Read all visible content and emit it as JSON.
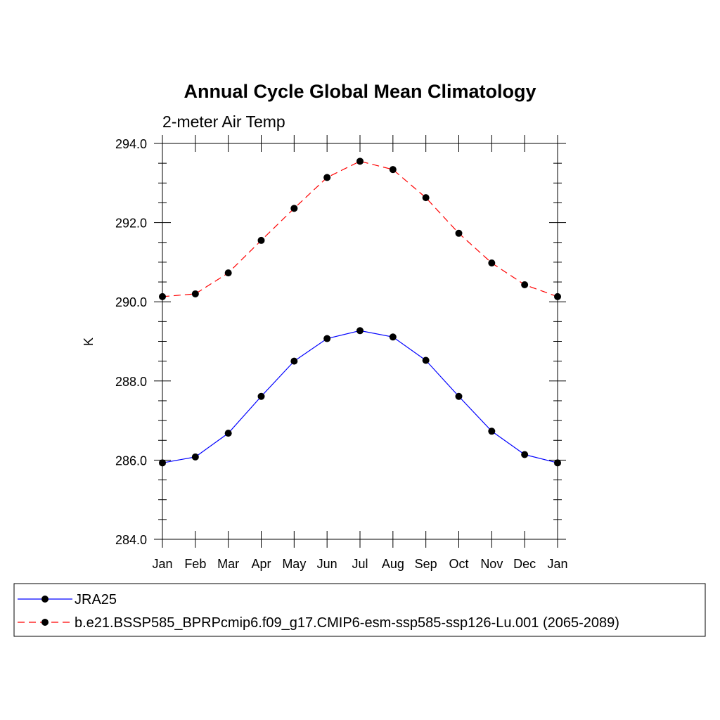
{
  "chart_data": {
    "type": "line",
    "title": "Annual Cycle Global Mean Climatology",
    "subtitle": "2-meter Air Temp",
    "xlabel": "",
    "ylabel": "K",
    "categories": [
      "Jan",
      "Feb",
      "Mar",
      "Apr",
      "May",
      "Jun",
      "Jul",
      "Aug",
      "Sep",
      "Oct",
      "Nov",
      "Dec",
      "Jan"
    ],
    "ylim": [
      284.0,
      294.0
    ],
    "yticks": [
      "284.0",
      "286.0",
      "288.0",
      "290.0",
      "292.0",
      "294.0"
    ],
    "grid": false,
    "legend_position": "bottom",
    "series": [
      {
        "name": "JRA25",
        "color": "#0000ff",
        "line_style": "solid",
        "marker": "filled-circle",
        "values": [
          285.93,
          286.08,
          286.68,
          287.61,
          288.5,
          289.07,
          289.27,
          289.11,
          288.52,
          287.61,
          286.73,
          286.14,
          285.93
        ]
      },
      {
        "name": "b.e21.BSSP585_BPRPcmip6.f09_g17.CMIP6-esm-ssp585-ssp126-Lu.001 (2065-2089)",
        "color": "#ff0000",
        "line_style": "dashed",
        "marker": "filled-circle",
        "values": [
          290.13,
          290.2,
          290.73,
          291.55,
          292.36,
          293.14,
          293.55,
          293.34,
          292.63,
          291.73,
          290.98,
          290.43,
          290.13
        ]
      }
    ]
  }
}
